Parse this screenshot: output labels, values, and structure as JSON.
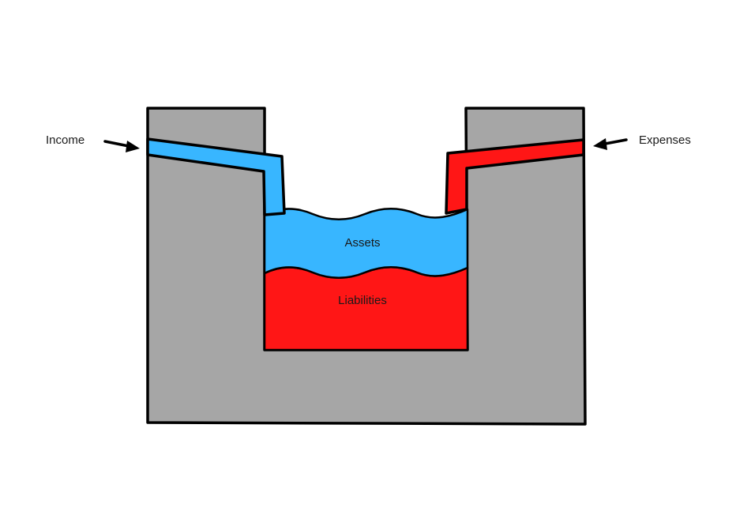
{
  "diagram": {
    "income_label": "Income",
    "expenses_label": "Expenses",
    "assets_label": "Assets",
    "liabilities_label": "Liabilities"
  },
  "colors": {
    "wall": "#a6a6a6",
    "assets": "#38b6ff",
    "liabilities": "#ff1616",
    "outline": "#000000"
  }
}
